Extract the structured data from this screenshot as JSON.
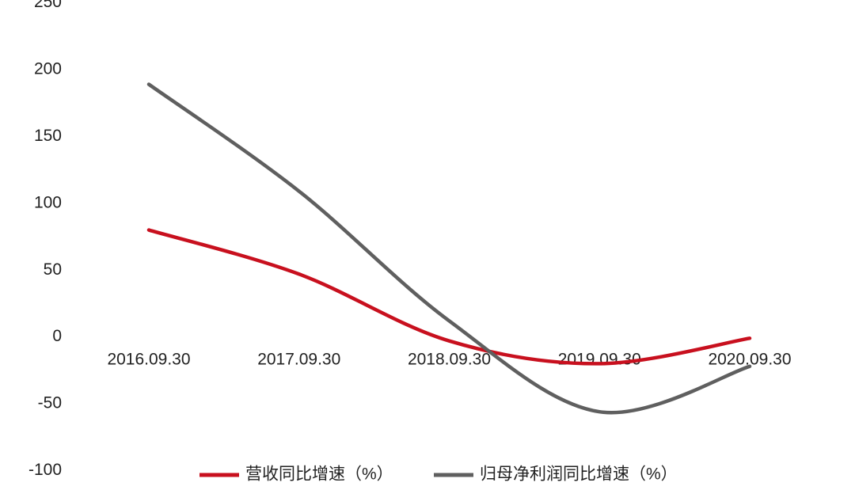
{
  "chart_data": {
    "type": "line",
    "categories": [
      "2016.09.30",
      "2017.09.30",
      "2018.09.30",
      "2019.09.30",
      "2020.09.30"
    ],
    "series": [
      {
        "name": "营收同比增速（%）",
        "color": "#c8101e",
        "values": [
          80,
          47,
          -3,
          -20,
          -1
        ]
      },
      {
        "name": "归母净利润同比增速（%）",
        "color": "#5f5f5f",
        "values": [
          189,
          109,
          12,
          -56,
          -22
        ]
      }
    ],
    "ylim": [
      -100,
      250
    ],
    "yticks": [
      -100,
      -50,
      0,
      50,
      100,
      150,
      200,
      250
    ],
    "grid": false,
    "legend": "bottom"
  }
}
